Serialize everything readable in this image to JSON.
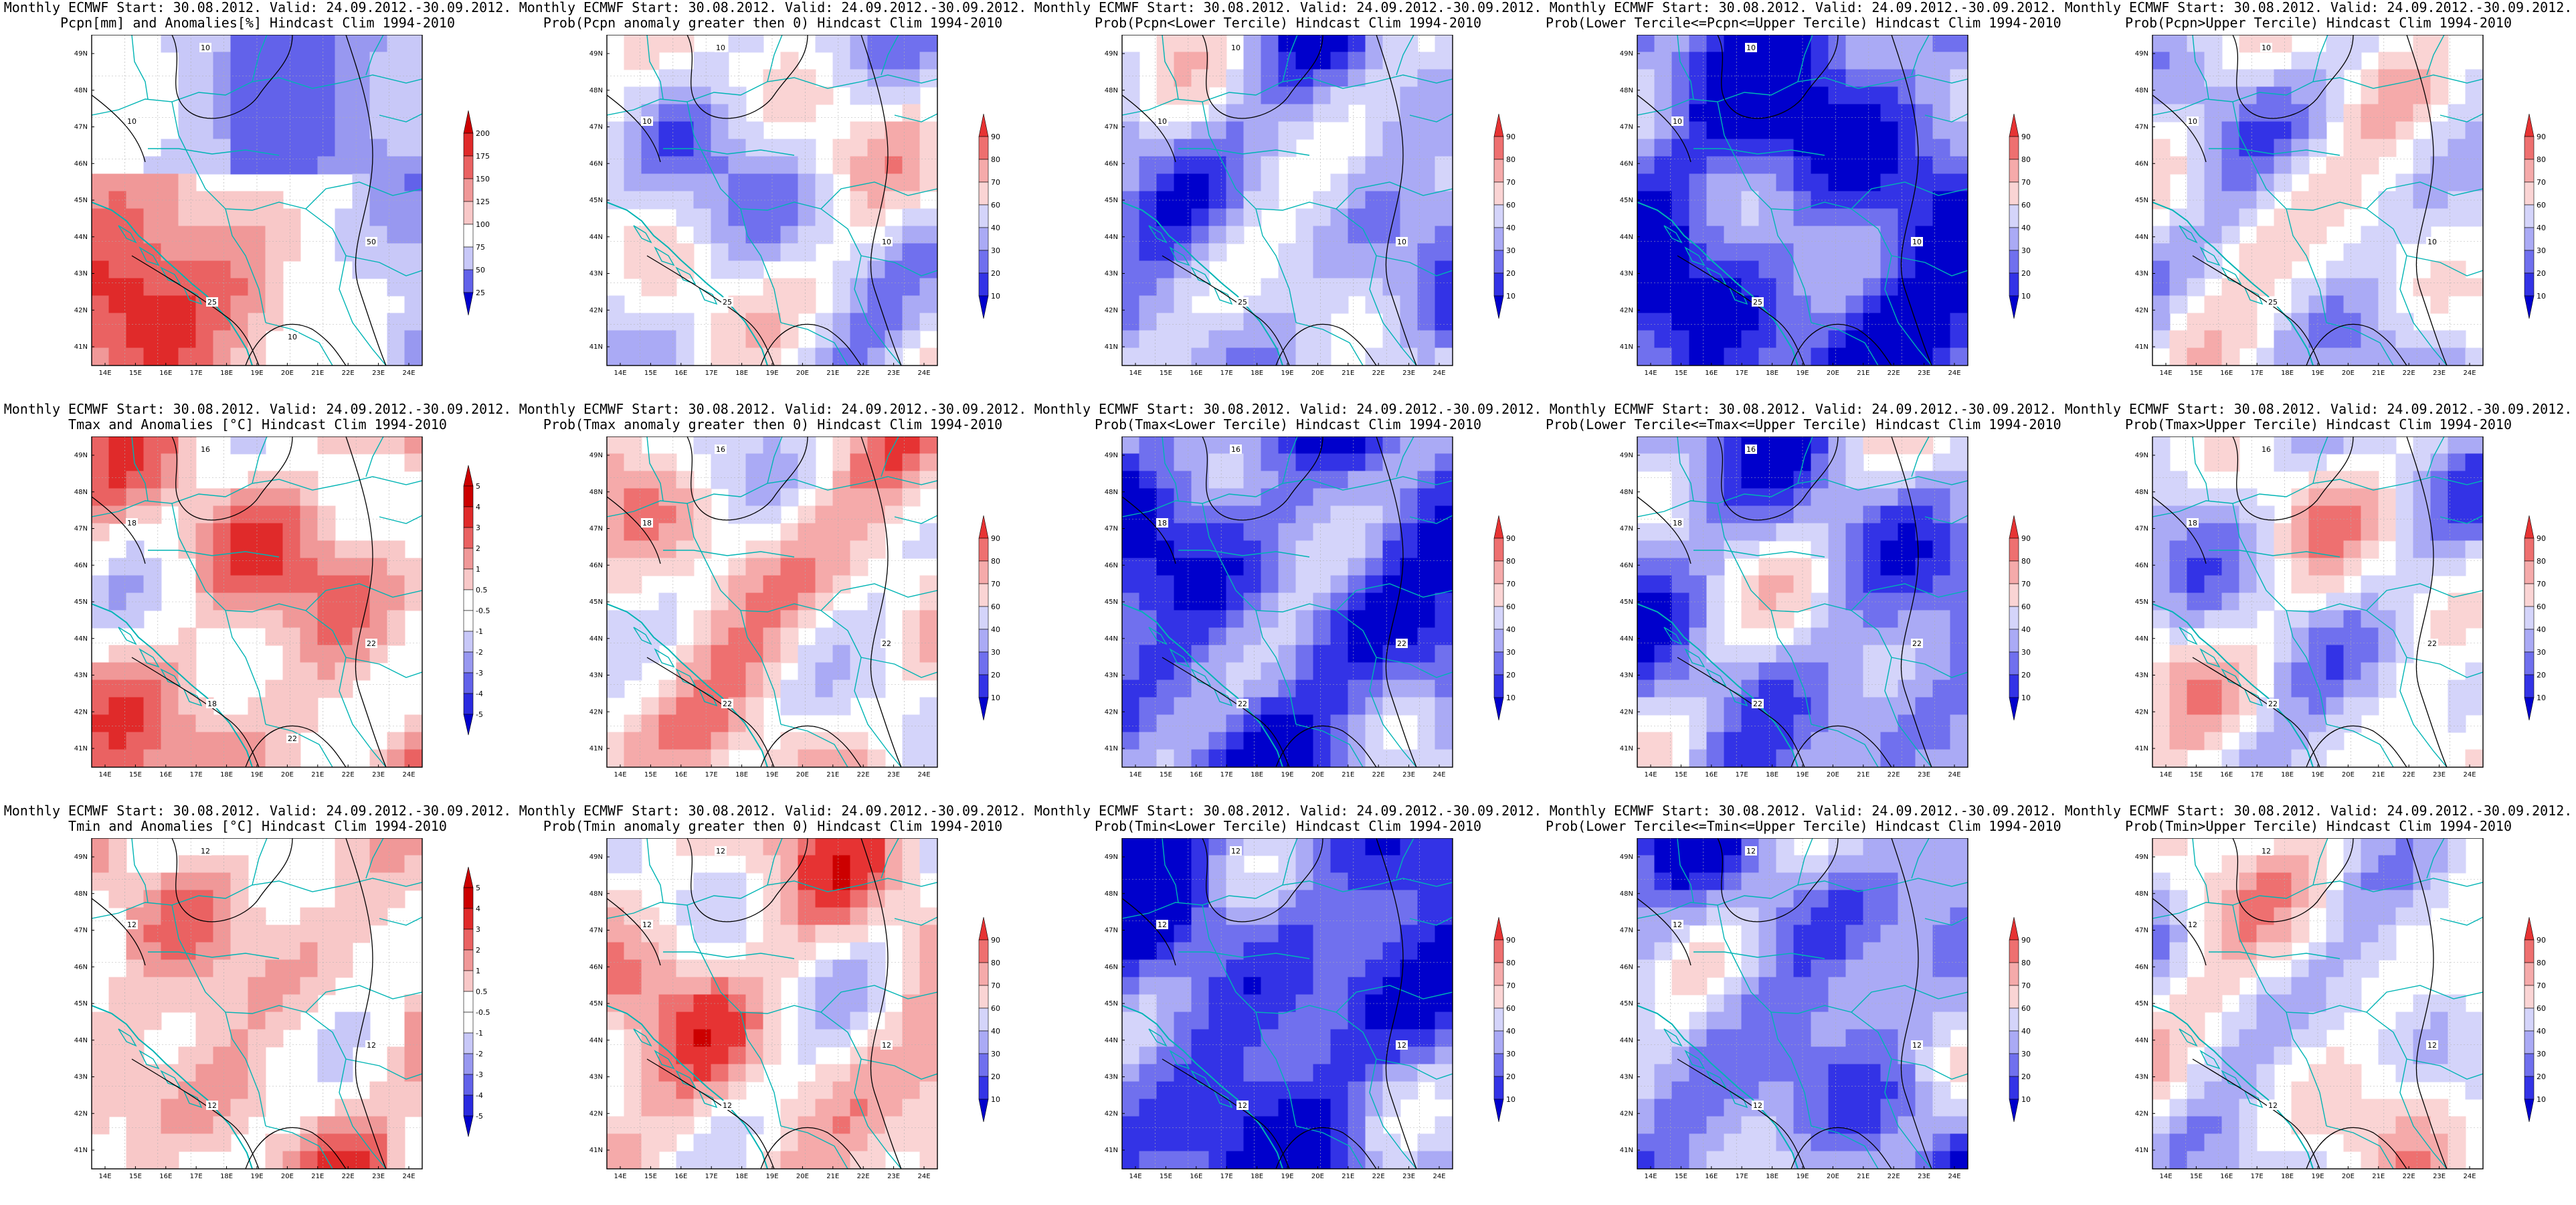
{
  "header_line": "Monthly ECMWF Start: 30.08.2012. Valid: 24.09.2012.-30.09.2012.",
  "lon_ticks": [
    "14E",
    "15E",
    "16E",
    "17E",
    "18E",
    "19E",
    "20E",
    "21E",
    "22E",
    "23E",
    "24E"
  ],
  "lat_ticks": [
    "49N",
    "48N",
    "47N",
    "46N",
    "45N",
    "44N",
    "43N",
    "42N",
    "41N"
  ],
  "colors": {
    "anom": [
      "#0000cc",
      "#2a2ae0",
      "#6262ea",
      "#9898f0",
      "#c8c8f8",
      "#ffffff",
      "#ffffff",
      "#f8c8c8",
      "#f09898",
      "#ea6262",
      "#e02a2a",
      "#cc0000"
    ],
    "prob": [
      "#0000cc",
      "#3333e6",
      "#7070ee",
      "#aaaaf5",
      "#d4d4fa",
      "#ffffff",
      "#fad4d4",
      "#f5aaaa",
      "#ee7070",
      "#e63333",
      "#cc0000"
    ],
    "coast": "#00b4b4",
    "contour": "#000000"
  },
  "colorbars": {
    "pcpn_anom": [
      "25",
      "50",
      "75",
      "100",
      "125",
      "150",
      "175",
      "200"
    ],
    "temp_anom": [
      "-5",
      "-4",
      "-3",
      "-2",
      "-1",
      "-0.5",
      "0.5",
      "1",
      "2",
      "3",
      "4",
      "5"
    ],
    "prob": [
      "10",
      "20",
      "30",
      "40",
      "60",
      "70",
      "80",
      "90"
    ]
  },
  "panels": [
    {
      "id": "pcpn-anomalies",
      "title2": "Pcpn[mm] and Anomalies[%] Hindcast Clim 1994-2010",
      "cbar": "pcpn_anom",
      "kind": "anom",
      "bias": 0.6,
      "seed": 3,
      "contours": [
        {
          "label": "10"
        },
        {
          "label": "10"
        },
        {
          "label": "25"
        },
        {
          "label": "50"
        },
        {
          "label": "10"
        }
      ]
    },
    {
      "id": "pcpn-prob-positive",
      "title2": "Prob(Pcpn anomaly greater then 0) Hindcast Clim 1994-2010",
      "cbar": "prob",
      "kind": "prob",
      "bias": -0.5,
      "seed": 7,
      "contours": [
        {
          "label": "10"
        },
        {
          "label": "10"
        },
        {
          "label": "25"
        },
        {
          "label": "10"
        }
      ]
    },
    {
      "id": "pcpn-prob-lower",
      "title2": "Prob(Pcpn<Lower Tercile) Hindcast Clim 1994-2010",
      "cbar": "prob",
      "kind": "prob",
      "bias": -1.1,
      "seed": 11,
      "contours": [
        {
          "label": "10"
        },
        {
          "label": "10"
        },
        {
          "label": "25"
        },
        {
          "label": "10"
        }
      ]
    },
    {
      "id": "pcpn-prob-normal",
      "title2": "Prob(Lower Tercile<=Pcpn<=Upper Tercile) Hindcast Clim 1994-2010",
      "cbar": "prob",
      "kind": "prob",
      "bias": -2.4,
      "seed": 13,
      "contours": [
        {
          "label": "10"
        },
        {
          "label": "10"
        },
        {
          "label": "25"
        },
        {
          "label": "10"
        }
      ]
    },
    {
      "id": "pcpn-prob-upper",
      "title2": "Prob(Pcpn>Upper Tercile) Hindcast Clim 1994-2010",
      "cbar": "prob",
      "kind": "prob",
      "bias": -0.4,
      "seed": 17,
      "contours": [
        {
          "label": "10"
        },
        {
          "label": "10"
        },
        {
          "label": "25"
        },
        {
          "label": "10"
        }
      ]
    },
    {
      "id": "tmax-anomalies",
      "title2": "Tmax and Anomalies [°C] Hindcast Clim 1994-2010",
      "cbar": "temp_anom",
      "kind": "anom",
      "bias": 1.0,
      "seed": 19,
      "contours": [
        {
          "label": "16"
        },
        {
          "label": "18"
        },
        {
          "label": "18"
        },
        {
          "label": "22"
        },
        {
          "label": "22"
        }
      ]
    },
    {
      "id": "tmax-prob-positive",
      "title2": "Prob(Tmax anomaly greater then 0) Hindcast Clim 1994-2010",
      "cbar": "prob",
      "kind": "prob",
      "bias": 0.5,
      "seed": 23,
      "contours": [
        {
          "label": "16"
        },
        {
          "label": "18"
        },
        {
          "label": "22"
        },
        {
          "label": "22"
        }
      ]
    },
    {
      "id": "tmax-prob-lower",
      "title2": "Prob(Tmax<Lower Tercile) Hindcast Clim 1994-2010",
      "cbar": "prob",
      "kind": "prob",
      "bias": -2.0,
      "seed": 29,
      "contours": [
        {
          "label": "16"
        },
        {
          "label": "18"
        },
        {
          "label": "22"
        },
        {
          "label": "22"
        }
      ]
    },
    {
      "id": "tmax-prob-normal",
      "title2": "Prob(Lower Tercile<=Tmax<=Upper Tercile) Hindcast Clim 1994-2010",
      "cbar": "prob",
      "kind": "prob",
      "bias": -1.3,
      "seed": 31,
      "contours": [
        {
          "label": "16"
        },
        {
          "label": "18"
        },
        {
          "label": "22"
        },
        {
          "label": "22"
        }
      ]
    },
    {
      "id": "tmax-prob-upper",
      "title2": "Prob(Tmax>Upper Tercile) Hindcast Clim 1994-2010",
      "cbar": "prob",
      "kind": "prob",
      "bias": -0.4,
      "seed": 37,
      "contours": [
        {
          "label": "16"
        },
        {
          "label": "18"
        },
        {
          "label": "22"
        },
        {
          "label": "22"
        }
      ]
    },
    {
      "id": "tmin-anomalies",
      "title2": "Tmin and Anomalies [°C] Hindcast Clim 1994-2010",
      "cbar": "temp_anom",
      "kind": "anom",
      "bias": 0.8,
      "seed": 41,
      "contours": [
        {
          "label": "12"
        },
        {
          "label": "12"
        },
        {
          "label": "12"
        },
        {
          "label": "12"
        }
      ]
    },
    {
      "id": "tmin-prob-positive",
      "title2": "Prob(Tmin anomaly greater then 0) Hindcast Clim 1994-2010",
      "cbar": "prob",
      "kind": "prob",
      "bias": 0.7,
      "seed": 43,
      "contours": [
        {
          "label": "12"
        },
        {
          "label": "12"
        },
        {
          "label": "12"
        },
        {
          "label": "12"
        }
      ]
    },
    {
      "id": "tmin-prob-lower",
      "title2": "Prob(Tmin<Lower Tercile) Hindcast Clim 1994-2010",
      "cbar": "prob",
      "kind": "prob",
      "bias": -2.2,
      "seed": 47,
      "contours": [
        {
          "label": "12"
        },
        {
          "label": "12"
        },
        {
          "label": "12"
        },
        {
          "label": "12"
        }
      ]
    },
    {
      "id": "tmin-prob-normal",
      "title2": "Prob(Lower Tercile<=Tmin<=Upper Tercile) Hindcast Clim 1994-2010",
      "cbar": "prob",
      "kind": "prob",
      "bias": -1.4,
      "seed": 53,
      "contours": [
        {
          "label": "12"
        },
        {
          "label": "12"
        },
        {
          "label": "12"
        },
        {
          "label": "12"
        }
      ]
    },
    {
      "id": "tmin-prob-upper",
      "title2": "Prob(Tmin>Upper Tercile) Hindcast Clim 1994-2010",
      "cbar": "prob",
      "kind": "prob",
      "bias": -0.2,
      "seed": 59,
      "contours": [
        {
          "label": "12"
        },
        {
          "label": "12"
        },
        {
          "label": "12"
        },
        {
          "label": "12"
        }
      ]
    }
  ]
}
